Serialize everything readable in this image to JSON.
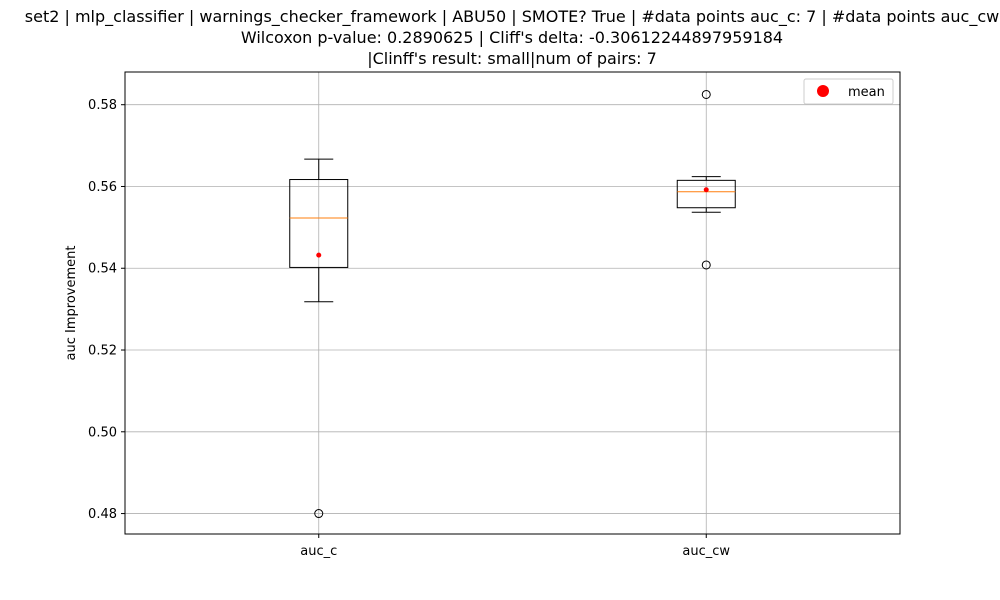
{
  "chart_data": {
    "type": "box",
    "title_lines": [
      "set2 | mlp_classifier | warnings_checker_framework | ABU50 | SMOTE? True | #data points auc_c: 7 | #data points auc_cw",
      "Wilcoxon p-value: 0.2890625 | Cliff's delta: -0.30612244897959184",
      "|Clinff's result: small|num of pairs: 7"
    ],
    "ylabel": "auc Improvement",
    "xlabel": "",
    "ylim": [
      0.475,
      0.588
    ],
    "yticks": [
      0.48,
      0.5,
      0.52,
      0.54,
      0.56,
      0.58
    ],
    "ytick_labels": [
      "0.48",
      "0.50",
      "0.52",
      "0.54",
      "0.56",
      "0.58"
    ],
    "grid": true,
    "legend": {
      "position": "top-right",
      "entries": [
        {
          "label": "mean",
          "color": "#ff0000"
        }
      ]
    },
    "categories": [
      "auc_c",
      "auc_cw"
    ],
    "boxes": [
      {
        "label": "auc_c",
        "whisker_low": 0.5318,
        "q1": 0.5402,
        "median": 0.5523,
        "q3": 0.5617,
        "whisker_high": 0.5667,
        "mean": 0.5432,
        "outliers": [
          0.48
        ]
      },
      {
        "label": "auc_cw",
        "whisker_low": 0.5537,
        "q1": 0.5548,
        "median": 0.5587,
        "q3": 0.5615,
        "whisker_high": 0.5624,
        "mean": 0.5592,
        "outliers": [
          0.5825,
          0.5408
        ]
      }
    ],
    "colors": {
      "box": "#000000",
      "median": "#ff7f0e",
      "mean": "#ff0000",
      "grid": "#b0b0b0"
    }
  }
}
